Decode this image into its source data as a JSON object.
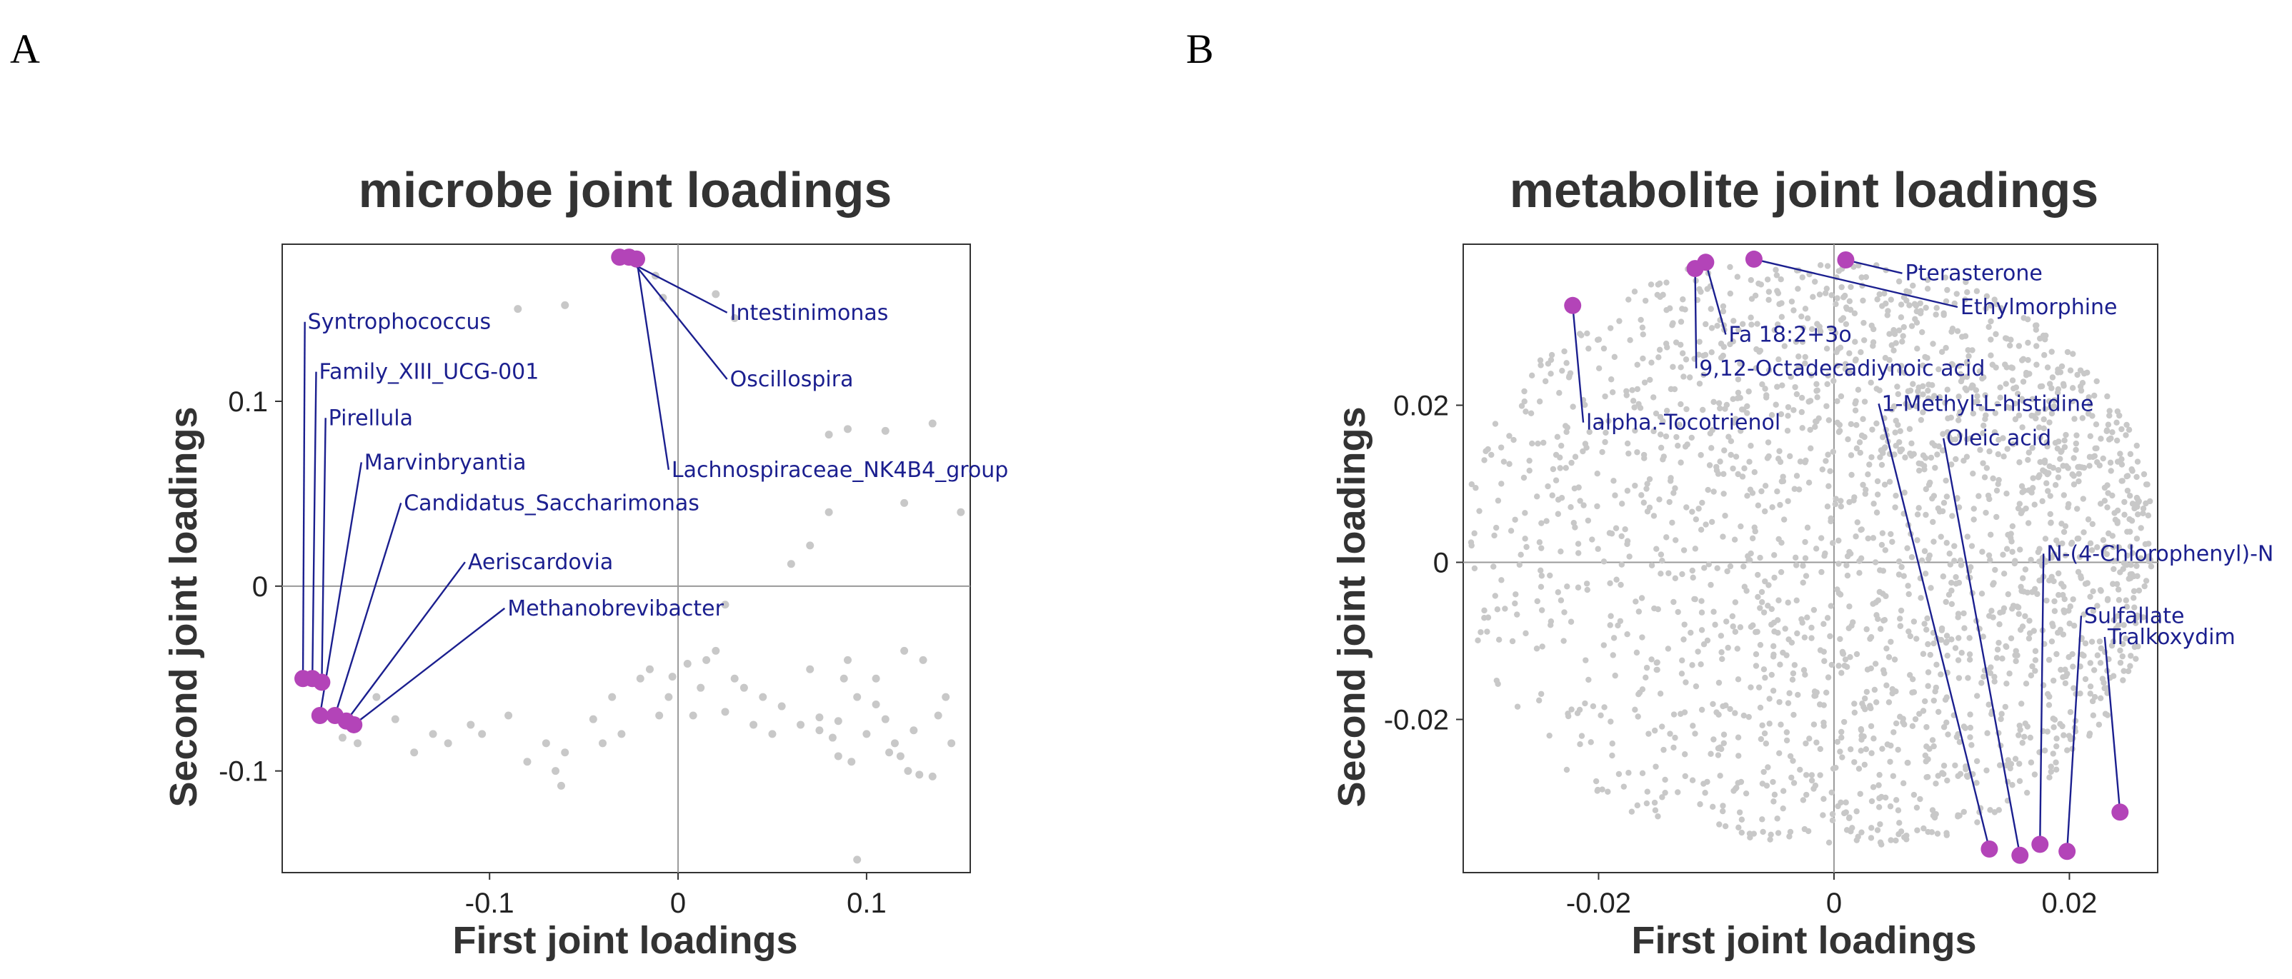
{
  "panels": {
    "a": "A",
    "b": "B"
  },
  "colors": {
    "background_points": "#c8c8c8",
    "highlight_points": "#b344b8",
    "labels": "#1b1f8f",
    "leader_lines": "#1b1f8f"
  },
  "chart_data": [
    {
      "type": "scatter",
      "title": "microbe joint loadings",
      "xlabel": "First joint loadings",
      "ylabel": "Second joint loadings",
      "xlim": [
        -0.21,
        0.155
      ],
      "ylim": [
        -0.155,
        0.185
      ],
      "xticks": [
        -0.1,
        0,
        0.1
      ],
      "yticks": [
        -0.1,
        0,
        0.1
      ],
      "xtick_labels": [
        "-0.1",
        "0",
        "0.1"
      ],
      "ytick_labels": [
        "-0.1",
        "0",
        "0.1"
      ],
      "grid": false,
      "zero_lines": true,
      "highlighted": [
        {
          "name": "Intestinimonas",
          "x": -0.031,
          "y": 0.178,
          "label_x": 0.026,
          "label_y": 0.148
        },
        {
          "name": "Oscillospira",
          "x": -0.026,
          "y": 0.178,
          "label_x": 0.026,
          "label_y": 0.112
        },
        {
          "name": "Lachnospiraceae_NK4B4_group",
          "x": -0.022,
          "y": 0.177,
          "label_x": -0.005,
          "label_y": 0.063
        },
        {
          "name": "Syntrophococcus",
          "x": -0.199,
          "y": -0.05,
          "label_x": -0.198,
          "label_y": 0.143
        },
        {
          "name": "Family_XIII_UCG-001",
          "x": -0.194,
          "y": -0.05,
          "label_x": -0.192,
          "label_y": 0.116
        },
        {
          "name": "Pirellula",
          "x": -0.189,
          "y": -0.052,
          "label_x": -0.187,
          "label_y": 0.091
        },
        {
          "name": "Marvinbryantia",
          "x": -0.19,
          "y": -0.07,
          "label_x": -0.168,
          "label_y": 0.067
        },
        {
          "name": "Candidatus_Saccharimonas",
          "x": -0.182,
          "y": -0.07,
          "label_x": -0.147,
          "label_y": 0.045
        },
        {
          "name": "Aeriscardovia",
          "x": -0.176,
          "y": -0.073,
          "label_x": -0.113,
          "label_y": 0.013
        },
        {
          "name": "Methanobrevibacter",
          "x": -0.172,
          "y": -0.075,
          "label_x": -0.092,
          "label_y": -0.012
        }
      ],
      "background_points": [
        [
          -0.085,
          0.15
        ],
        [
          -0.06,
          0.152
        ],
        [
          -0.012,
          0.168
        ],
        [
          -0.008,
          0.156
        ],
        [
          0.02,
          0.158
        ],
        [
          0.03,
          0.145
        ],
        [
          0.09,
          0.085
        ],
        [
          0.11,
          0.084
        ],
        [
          0.135,
          0.088
        ],
        [
          0.15,
          0.04
        ],
        [
          0.08,
          0.04
        ],
        [
          0.06,
          0.012
        ],
        [
          0.07,
          0.022
        ],
        [
          0.12,
          0.045
        ],
        [
          0.025,
          -0.01
        ],
        [
          0.02,
          -0.035
        ],
        [
          0.005,
          -0.042
        ],
        [
          -0.003,
          -0.049
        ],
        [
          0.012,
          -0.055
        ],
        [
          0.015,
          -0.04
        ],
        [
          0.03,
          -0.05
        ],
        [
          0.035,
          -0.055
        ],
        [
          0.045,
          -0.06
        ],
        [
          0.055,
          -0.065
        ],
        [
          0.04,
          -0.075
        ],
        [
          0.025,
          -0.068
        ],
        [
          -0.005,
          -0.06
        ],
        [
          -0.01,
          -0.07
        ],
        [
          0.008,
          -0.07
        ],
        [
          0.05,
          -0.08
        ],
        [
          0.065,
          -0.075
        ],
        [
          0.075,
          -0.071
        ],
        [
          0.085,
          -0.073
        ],
        [
          0.095,
          -0.06
        ],
        [
          0.105,
          -0.064
        ],
        [
          0.11,
          -0.072
        ],
        [
          0.1,
          -0.08
        ],
        [
          0.115,
          -0.085
        ],
        [
          0.118,
          -0.092
        ],
        [
          0.122,
          -0.1
        ],
        [
          0.128,
          -0.102
        ],
        [
          0.135,
          -0.103
        ],
        [
          0.142,
          -0.06
        ],
        [
          0.145,
          -0.085
        ],
        [
          0.092,
          -0.095
        ],
        [
          0.085,
          -0.092
        ],
        [
          0.082,
          -0.082
        ],
        [
          0.09,
          -0.04
        ],
        [
          0.105,
          -0.05
        ],
        [
          0.12,
          -0.035
        ],
        [
          0.13,
          -0.04
        ],
        [
          0.095,
          -0.148
        ],
        [
          -0.03,
          -0.08
        ],
        [
          -0.04,
          -0.085
        ],
        [
          -0.06,
          -0.09
        ],
        [
          -0.065,
          -0.1
        ],
        [
          -0.062,
          -0.108
        ],
        [
          -0.07,
          -0.085
        ],
        [
          -0.09,
          -0.07
        ],
        [
          -0.11,
          -0.075
        ],
        [
          -0.13,
          -0.08
        ],
        [
          -0.14,
          -0.09
        ],
        [
          -0.15,
          -0.072
        ],
        [
          -0.122,
          -0.085
        ],
        [
          -0.104,
          -0.08
        ],
        [
          -0.08,
          -0.095
        ],
        [
          -0.035,
          -0.06
        ],
        [
          -0.045,
          -0.072
        ],
        [
          -0.02,
          -0.05
        ],
        [
          -0.015,
          -0.045
        ],
        [
          -0.16,
          -0.06
        ],
        [
          -0.17,
          -0.085
        ],
        [
          -0.178,
          -0.082
        ],
        [
          0.075,
          -0.078
        ],
        [
          0.088,
          -0.05
        ],
        [
          0.112,
          -0.09
        ],
        [
          0.125,
          -0.078
        ],
        [
          0.138,
          -0.07
        ],
        [
          0.08,
          0.082
        ],
        [
          0.07,
          -0.045
        ]
      ]
    },
    {
      "type": "scatter",
      "title": "metabolite joint loadings",
      "xlabel": "First joint loadings",
      "ylabel": "Second joint loadings",
      "xlim": [
        -0.0315,
        0.0275
      ],
      "ylim": [
        -0.0395,
        0.0405
      ],
      "xticks": [
        -0.02,
        0,
        0.02
      ],
      "yticks": [
        -0.02,
        0,
        0.02
      ],
      "xtick_labels": [
        "-0.02",
        "0",
        "0.02"
      ],
      "ytick_labels": [
        "-0.02",
        "0",
        "0.02"
      ],
      "grid": false,
      "zero_lines": true,
      "background_cloud": "dense cloud of roughly 2000 grey points spanning the plot area, densest on the right side",
      "highlighted": [
        {
          "name": "Pterasterone",
          "x": 0.001,
          "y": 0.0385,
          "label_x": 0.0058,
          "label_y": 0.0368
        },
        {
          "name": "Ethylmorphine",
          "x": -0.0068,
          "y": 0.0386,
          "label_x": 0.0105,
          "label_y": 0.0325
        },
        {
          "name": "Fa 18:2+3o",
          "x": -0.0109,
          "y": 0.0382,
          "label_x": -0.0092,
          "label_y": 0.029
        },
        {
          "name": "9,12-Octadecadiynoic acid",
          "x": -0.0118,
          "y": 0.0374,
          "label_x": -0.0117,
          "label_y": 0.0247
        },
        {
          "name": "lalpha.-Tocotrienol",
          "x": -0.0222,
          "y": 0.0327,
          "label_x": -0.0213,
          "label_y": 0.0178
        },
        {
          "name": "1-Methyl-L-histidine",
          "x": 0.0132,
          "y": -0.0365,
          "label_x": 0.0038,
          "label_y": 0.0202
        },
        {
          "name": "Oleic acid",
          "x": 0.0158,
          "y": -0.0373,
          "label_x": 0.0093,
          "label_y": 0.0158
        },
        {
          "name": "N-(4-Chlorophenyl)-N",
          "x": 0.0175,
          "y": -0.0359,
          "label_x": 0.0178,
          "label_y": 0.0011
        },
        {
          "name": "Sulfallate",
          "x": 0.0198,
          "y": -0.0368,
          "label_x": 0.021,
          "label_y": -0.0068
        },
        {
          "name": "Tralkoxydim",
          "x": 0.0243,
          "y": -0.0318,
          "label_x": 0.023,
          "label_y": -0.0095
        }
      ]
    }
  ]
}
